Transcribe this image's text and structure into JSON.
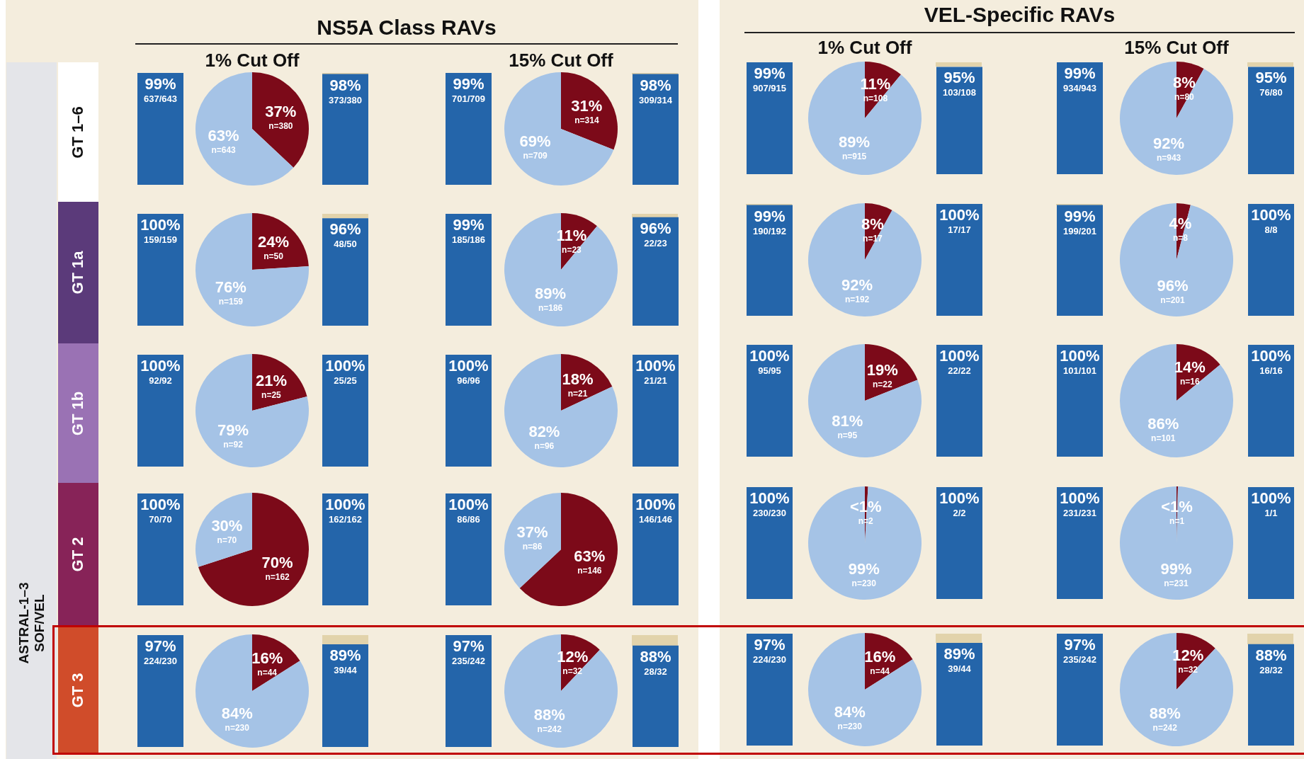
{
  "chart_data": [
    {
      "type": "bar",
      "title": "NS5A Class RAVs",
      "ylabel": "GT 1–6",
      "categories": [
        null,
        null
      ],
      "series": [
        {
          "color": "#2465aa",
          "values": [
            99,
            98
          ],
          "value_labels": [
            "99%",
            "98%"
          ]
        }
      ],
      "tick_labels": false,
      "annotations": [
        "637/643",
        "373/380"
      ]
    },
    {
      "type": "pie",
      "title": "1% Cut Off",
      "categories": [
        "n=380",
        "n=643"
      ],
      "values": [
        37,
        63
      ],
      "colors": [
        "#7c0a19",
        "#a5c3e6"
      ],
      "value_labels": [
        "37%",
        "63%"
      ]
    },
    {
      "type": "bar",
      "categories": [
        null,
        null
      ],
      "series": [
        {
          "color": "#2465aa",
          "values": [
            99,
            98
          ],
          "value_labels": [
            "99%",
            "98%"
          ]
        }
      ],
      "tick_labels": false,
      "annotations": [
        "701/709",
        "309/314"
      ]
    },
    {
      "type": "pie",
      "title": "15% Cut Off",
      "categories": [
        "n=314",
        "n=709"
      ],
      "values": [
        31,
        69
      ],
      "colors": [
        "#7c0a19",
        "#a5c3e6"
      ],
      "value_labels": [
        "31%",
        "69%"
      ]
    },
    {
      "type": "bar",
      "title": "VEL-Specific RAVs",
      "categories": [
        null,
        null
      ],
      "series": [
        {
          "color": "#2465aa",
          "values": [
            99,
            95
          ],
          "value_labels": [
            "99%",
            "95%"
          ]
        }
      ],
      "tick_labels": false,
      "annotations": [
        "907/915",
        "103/108"
      ]
    },
    {
      "type": "pie",
      "title": "1% Cut Off",
      "categories": [
        "n=108",
        "n=915"
      ],
      "values": [
        11,
        89
      ],
      "colors": [
        "#7c0a19",
        "#a5c3e6"
      ],
      "value_labels": [
        "11%",
        "89%"
      ]
    },
    {
      "type": "bar",
      "categories": [
        null,
        null
      ],
      "series": [
        {
          "color": "#2465aa",
          "values": [
            99,
            95
          ],
          "value_labels": [
            "99%",
            "95%"
          ]
        }
      ],
      "tick_labels": false,
      "annotations": [
        "934/943",
        "76/80"
      ]
    },
    {
      "type": "pie",
      "title": "15% Cut Off",
      "categories": [
        "n=80",
        "n=943"
      ],
      "values": [
        8,
        92
      ],
      "colors": [
        "#7c0a19",
        "#a5c3e6"
      ],
      "value_labels": [
        "8%",
        "92%"
      ]
    },
    {
      "type": "bar",
      "ylabel": "GT 1a",
      "categories": [
        null,
        null
      ],
      "series": [
        {
          "color": "#2465aa",
          "values": [
            100,
            96
          ],
          "value_labels": [
            "100%",
            "96%"
          ]
        }
      ],
      "tick_labels": false,
      "annotations": [
        "159/159",
        "48/50"
      ]
    },
    {
      "type": "pie",
      "categories": [
        "n=50",
        "n=159"
      ],
      "values": [
        24,
        76
      ],
      "colors": [
        "#7c0a19",
        "#a5c3e6"
      ],
      "value_labels": [
        "24%",
        "76%"
      ]
    },
    {
      "type": "bar",
      "categories": [
        null,
        null
      ],
      "series": [
        {
          "color": "#2465aa",
          "values": [
            99,
            96
          ],
          "value_labels": [
            "99%",
            "96%"
          ]
        }
      ],
      "tick_labels": false,
      "annotations": [
        "185/186",
        "22/23"
      ]
    },
    {
      "type": "pie",
      "categories": [
        "n=23",
        "n=186"
      ],
      "values": [
        11,
        89
      ],
      "colors": [
        "#7c0a19",
        "#a5c3e6"
      ],
      "value_labels": [
        "11%",
        "89%"
      ]
    },
    {
      "type": "bar",
      "categories": [
        null,
        null
      ],
      "series": [
        {
          "color": "#2465aa",
          "values": [
            99,
            100
          ],
          "value_labels": [
            "99%",
            "100%"
          ]
        }
      ],
      "tick_labels": false,
      "annotations": [
        "190/192",
        "17/17"
      ]
    },
    {
      "type": "pie",
      "categories": [
        "n=17",
        "n=192"
      ],
      "values": [
        8,
        92
      ],
      "colors": [
        "#7c0a19",
        "#a5c3e6"
      ],
      "value_labels": [
        "8%",
        "92%"
      ]
    },
    {
      "type": "bar",
      "categories": [
        null,
        null
      ],
      "series": [
        {
          "color": "#2465aa",
          "values": [
            99,
            100
          ],
          "value_labels": [
            "99%",
            "100%"
          ]
        }
      ],
      "tick_labels": false,
      "annotations": [
        "199/201",
        "8/8"
      ]
    },
    {
      "type": "pie",
      "categories": [
        "n=8",
        "n=201"
      ],
      "values": [
        4,
        96
      ],
      "colors": [
        "#7c0a19",
        "#a5c3e6"
      ],
      "value_labels": [
        "4%",
        "96%"
      ]
    },
    {
      "type": "bar",
      "ylabel": "GT 1b",
      "categories": [
        null,
        null
      ],
      "series": [
        {
          "color": "#2465aa",
          "values": [
            100,
            100
          ],
          "value_labels": [
            "100%",
            "100%"
          ]
        }
      ],
      "tick_labels": false,
      "annotations": [
        "92/92",
        "25/25"
      ]
    },
    {
      "type": "pie",
      "categories": [
        "n=25",
        "n=92"
      ],
      "values": [
        21,
        79
      ],
      "colors": [
        "#7c0a19",
        "#a5c3e6"
      ],
      "value_labels": [
        "21%",
        "79%"
      ]
    },
    {
      "type": "bar",
      "categories": [
        null,
        null
      ],
      "series": [
        {
          "color": "#2465aa",
          "values": [
            100,
            100
          ],
          "value_labels": [
            "100%",
            "100%"
          ]
        }
      ],
      "tick_labels": false,
      "annotations": [
        "96/96",
        "21/21"
      ]
    },
    {
      "type": "pie",
      "categories": [
        "n=21",
        "n=96"
      ],
      "values": [
        18,
        82
      ],
      "colors": [
        "#7c0a19",
        "#a5c3e6"
      ],
      "value_labels": [
        "18%",
        "82%"
      ]
    },
    {
      "type": "bar",
      "categories": [
        null,
        null
      ],
      "series": [
        {
          "color": "#2465aa",
          "values": [
            100,
            100
          ],
          "value_labels": [
            "100%",
            "100%"
          ]
        }
      ],
      "tick_labels": false,
      "annotations": [
        "95/95",
        "22/22"
      ]
    },
    {
      "type": "pie",
      "categories": [
        "n=22",
        "n=95"
      ],
      "values": [
        19,
        81
      ],
      "colors": [
        "#7c0a19",
        "#a5c3e6"
      ],
      "value_labels": [
        "19%",
        "81%"
      ]
    },
    {
      "type": "bar",
      "categories": [
        null,
        null
      ],
      "series": [
        {
          "color": "#2465aa",
          "values": [
            100,
            100
          ],
          "value_labels": [
            "100%",
            "100%"
          ]
        }
      ],
      "tick_labels": false,
      "annotations": [
        "101/101",
        "16/16"
      ]
    },
    {
      "type": "pie",
      "categories": [
        "n=16",
        "n=101"
      ],
      "values": [
        14,
        86
      ],
      "colors": [
        "#7c0a19",
        "#a5c3e6"
      ],
      "value_labels": [
        "14%",
        "86%"
      ]
    },
    {
      "type": "bar",
      "ylabel": "GT 2",
      "categories": [
        null,
        null
      ],
      "series": [
        {
          "color": "#2465aa",
          "values": [
            100,
            100
          ],
          "value_labels": [
            "100%",
            "100%"
          ]
        }
      ],
      "tick_labels": false,
      "annotations": [
        "70/70",
        "162/162"
      ]
    },
    {
      "type": "pie",
      "categories": [
        "n=162",
        "n=70"
      ],
      "values": [
        70,
        30
      ],
      "colors": [
        "#7c0a19",
        "#a5c3e6"
      ],
      "value_labels": [
        "70%",
        "30%"
      ]
    },
    {
      "type": "bar",
      "categories": [
        null,
        null
      ],
      "series": [
        {
          "color": "#2465aa",
          "values": [
            100,
            100
          ],
          "value_labels": [
            "100%",
            "100%"
          ]
        }
      ],
      "tick_labels": false,
      "annotations": [
        "86/86",
        "146/146"
      ]
    },
    {
      "type": "pie",
      "categories": [
        "n=146",
        "n=86"
      ],
      "values": [
        63,
        37
      ],
      "colors": [
        "#7c0a19",
        "#a5c3e6"
      ],
      "value_labels": [
        "63%",
        "37%"
      ]
    },
    {
      "type": "bar",
      "categories": [
        null,
        null
      ],
      "series": [
        {
          "color": "#2465aa",
          "values": [
            100,
            100
          ],
          "value_labels": [
            "100%",
            "100%"
          ]
        }
      ],
      "tick_labels": false,
      "annotations": [
        "230/230",
        "2/2"
      ]
    },
    {
      "type": "pie",
      "categories": [
        "n=2",
        "n=230"
      ],
      "values": [
        0.9,
        99
      ],
      "colors": [
        "#7c0a19",
        "#a5c3e6"
      ],
      "value_labels": [
        "<1%",
        "99%"
      ]
    },
    {
      "type": "bar",
      "categories": [
        null,
        null
      ],
      "series": [
        {
          "color": "#2465aa",
          "values": [
            100,
            100
          ],
          "value_labels": [
            "100%",
            "100%"
          ]
        }
      ],
      "tick_labels": false,
      "annotations": [
        "231/231",
        "1/1"
      ]
    },
    {
      "type": "pie",
      "categories": [
        "n=1",
        "n=231"
      ],
      "values": [
        0.4,
        99
      ],
      "colors": [
        "#7c0a19",
        "#a5c3e6"
      ],
      "value_labels": [
        "<1%",
        "99%"
      ]
    },
    {
      "type": "bar",
      "ylabel": "GT 3",
      "categories": [
        null,
        null
      ],
      "series": [
        {
          "color": "#2465aa",
          "values": [
            97,
            89
          ],
          "value_labels": [
            "97%",
            "89%"
          ]
        }
      ],
      "tick_labels": false,
      "annotations": [
        "224/230",
        "39/44",
        "ASTRAL-1–3 SOF/VEL"
      ]
    },
    {
      "type": "pie",
      "categories": [
        "n=44",
        "n=230"
      ],
      "values": [
        16,
        84
      ],
      "colors": [
        "#7c0a19",
        "#a5c3e6"
      ],
      "value_labels": [
        "16%",
        "84%"
      ]
    },
    {
      "type": "bar",
      "categories": [
        null,
        null
      ],
      "series": [
        {
          "color": "#2465aa",
          "values": [
            97,
            88
          ],
          "value_labels": [
            "97%",
            "88%"
          ]
        }
      ],
      "tick_labels": false,
      "annotations": [
        "235/242",
        "28/32"
      ]
    },
    {
      "type": "pie",
      "categories": [
        "n=32",
        "n=242"
      ],
      "values": [
        12,
        88
      ],
      "colors": [
        "#7c0a19",
        "#a5c3e6"
      ],
      "value_labels": [
        "12%",
        "88%"
      ]
    },
    {
      "type": "bar",
      "categories": [
        null,
        null
      ],
      "series": [
        {
          "color": "#2465aa",
          "values": [
            97,
            89
          ],
          "value_labels": [
            "97%",
            "89%"
          ]
        }
      ],
      "tick_labels": false,
      "annotations": [
        "224/230",
        "39/44"
      ]
    },
    {
      "type": "pie",
      "categories": [
        "n=44",
        "n=230"
      ],
      "values": [
        16,
        84
      ],
      "colors": [
        "#7c0a19",
        "#a5c3e6"
      ],
      "value_labels": [
        "16%",
        "84%"
      ]
    },
    {
      "type": "bar",
      "categories": [
        null,
        null
      ],
      "series": [
        {
          "color": "#2465aa",
          "values": [
            97,
            88
          ],
          "value_labels": [
            "97%",
            "88%"
          ]
        }
      ],
      "tick_labels": false,
      "annotations": [
        "235/242",
        "28/32"
      ]
    },
    {
      "type": "pie",
      "categories": [
        "n=32",
        "n=242"
      ],
      "values": [
        12,
        88
      ],
      "colors": [
        "#7c0a19",
        "#a5c3e6"
      ],
      "value_labels": [
        "12%",
        "88%"
      ]
    }
  ]
}
